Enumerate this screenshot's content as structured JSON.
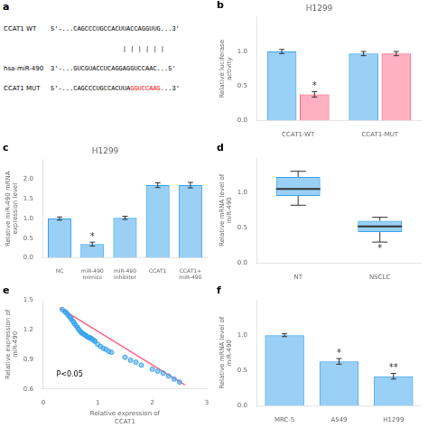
{
  "chart_data": [
    {
      "type": "text",
      "annotations": [
        "a",
        [
          "CCAT1 WT",
          "5'-...CAGCCCUGCCACUUACCAGGUUG...3'"
        ],
        [
          "| | | | | |"
        ],
        [
          "hsa-miR-490",
          "3'-...GUCGUACCUCAGGAGGUCCAAC...5'"
        ],
        [
          "CCAT1 MUT",
          "5'-...CAGCCCUGCCACUUA",
          {
            "text": "GGUCCAAG",
            "color": "red"
          },
          "...3'"
        ]
      ]
    },
    {
      "type": "bar",
      "title": "H1299",
      "annotations": [
        "b"
      ],
      "categories": [
        "CCAT1-WT",
        "CCAT1-MUT"
      ],
      "series": [
        {
          "values": [
            1.0,
            0.97
          ],
          "errors": [
            0.03,
            0.03
          ],
          "annotations": [
            null,
            null
          ]
        },
        {
          "values": [
            0.38,
            0.97
          ],
          "errors": [
            0.04,
            0.03
          ],
          "annotations": [
            "*",
            null
          ]
        }
      ],
      "ylabel": "Relative luciferase activity",
      "ylim": [
        0.0,
        1.5
      ],
      "yticks": [
        {
          "value": 0.0,
          "label": "0.0"
        },
        0.5,
        {
          "value": 1.0,
          "label": "1.0"
        }
      ],
      "grid": false
    },
    {
      "type": "bar",
      "title": "H1299",
      "annotations": [
        "c"
      ],
      "categories": [
        "NC",
        "miR-490\nmimics",
        "miR-490\ninhibitor",
        "CCAT1",
        "CCAT1+\nmiR-490"
      ],
      "series": [
        {
          "values": [
            1.0,
            0.35,
            1.02,
            1.85,
            1.85
          ],
          "errors": [
            0.04,
            0.05,
            0.04,
            0.06,
            0.07
          ],
          "annotations": [
            null,
            "*",
            null,
            null,
            null
          ]
        }
      ],
      "ylabel": "Relative miR-490 mRNA expression level",
      "ylim": [
        0.0,
        2.5
      ],
      "yticks": [
        {
          "value": 0.0,
          "label": "0.0"
        },
        0.5,
        {
          "value": 1.0,
          "label": "1.0"
        },
        1.5,
        {
          "value": 2.0,
          "label": "2.0"
        }
      ],
      "grid": false
    },
    {
      "type": "box",
      "annotations": [
        "d"
      ],
      "categories": [
        "NT",
        "NSCLC"
      ],
      "series": [
        {
          "boxes": [
            {
              "q1": 0.95,
              "median": 1.05,
              "q3": 1.22,
              "whisker_low": 0.82,
              "whisker_high": 1.3
            },
            {
              "q1": 0.44,
              "median": 0.52,
              "q3": 0.6,
              "whisker_low": 0.3,
              "whisker_high": 0.65
            }
          ],
          "annotations": [
            null,
            "*"
          ]
        }
      ],
      "ylabel": "Relative mRNA level of miR-490",
      "ylim": [
        0.0,
        1.5
      ],
      "yticks": [
        {
          "value": 0.0,
          "label": "0.0"
        },
        0.5,
        {
          "value": 1.0,
          "label": "1.0"
        }
      ],
      "grid": false
    },
    {
      "type": "scatter",
      "annotations": [
        "e",
        "P<0.05"
      ],
      "series": [
        {
          "type": "scatter",
          "x": [
            0.35,
            0.4,
            0.42,
            0.45,
            0.48,
            0.5,
            0.52,
            0.55,
            0.57,
            0.6,
            0.63,
            0.65,
            0.68,
            0.7,
            0.72,
            0.75,
            0.78,
            0.8,
            0.83,
            0.85,
            0.88,
            0.9,
            0.93,
            0.95,
            1.0,
            1.05,
            1.1,
            1.15,
            1.2,
            1.25,
            1.5,
            1.6,
            1.7,
            1.8,
            2.0,
            2.1,
            2.2,
            2.3,
            2.4,
            2.5
          ],
          "values": [
            1.4,
            1.38,
            1.37,
            1.35,
            1.33,
            1.32,
            1.3,
            1.28,
            1.26,
            1.24,
            1.22,
            1.2,
            1.18,
            1.17,
            1.16,
            1.15,
            1.14,
            1.13,
            1.12,
            1.12,
            1.11,
            1.1,
            1.09,
            1.08,
            1.05,
            1.03,
            1.01,
            1.0,
            0.98,
            0.97,
            0.92,
            0.89,
            0.87,
            0.84,
            0.8,
            0.78,
            0.76,
            0.73,
            0.7,
            0.67
          ]
        },
        {
          "type": "line",
          "x": [
            0.3,
            2.6
          ],
          "values": [
            1.42,
            0.64
          ]
        }
      ],
      "xlabel": "Relative expression of CCAT1",
      "ylabel": "Relative expression of miR-490",
      "xlim": [
        0,
        3
      ],
      "xticks": [
        0,
        1,
        2,
        3
      ],
      "ylim": [
        0.6,
        1.5
      ],
      "yticks": [
        0.6,
        0.9,
        1.2,
        1.5
      ],
      "grid": false
    },
    {
      "type": "bar",
      "annotations": [
        "f"
      ],
      "categories": [
        "MRC-5",
        "A549",
        "H1299"
      ],
      "series": [
        {
          "values": [
            1.0,
            0.63,
            0.42
          ],
          "errors": [
            0.02,
            0.04,
            0.04
          ],
          "annotations": [
            null,
            "*",
            "**"
          ]
        }
      ],
      "ylabel": "Relative mRNA level of miR-490",
      "ylim": [
        0.0,
        1.5
      ],
      "yticks": [
        {
          "value": 0.0,
          "label": "0.0"
        },
        0.5,
        {
          "value": 1.0,
          "label": "1.0"
        }
      ],
      "grid": false
    }
  ]
}
